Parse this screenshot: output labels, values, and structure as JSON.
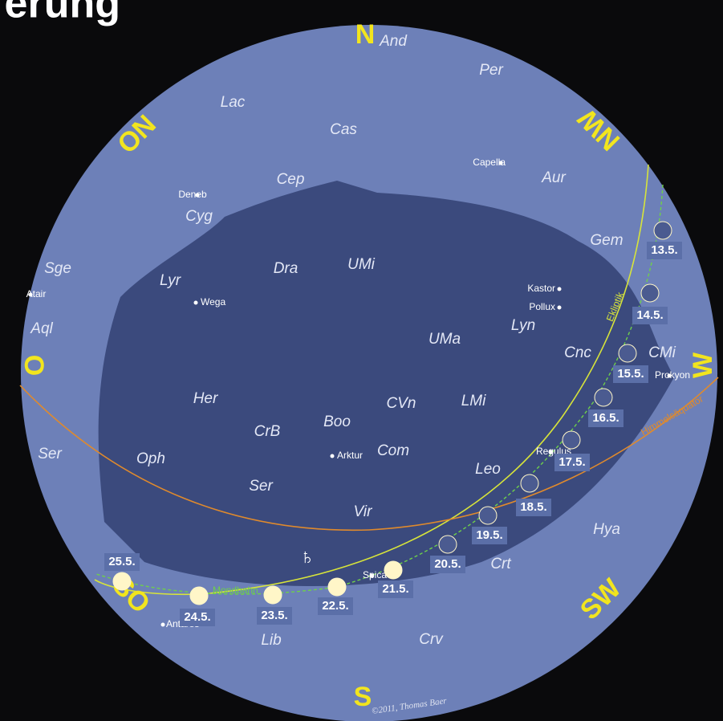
{
  "header": {
    "title": "erung"
  },
  "directions": {
    "n": "N",
    "no": "NO",
    "nw": "NW",
    "o": "O",
    "w": "W",
    "so": "SO",
    "sw": "SW",
    "s": "S"
  },
  "constellations": [
    "And",
    "Per",
    "Lac",
    "Cas",
    "Cep",
    "Aur",
    "Cyg",
    "Gem",
    "Sge",
    "Dra",
    "UMi",
    "Lyr",
    "Aql",
    "UMa",
    "Lyn",
    "Cnc",
    "CMi",
    "Her",
    "CVn",
    "LMi",
    "CrB",
    "Boo",
    "Com",
    "Leo",
    "Ser",
    "Oph",
    "Ser",
    "Vir",
    "Hya",
    "Crt",
    "Lib",
    "Crv"
  ],
  "stars": [
    "Capella",
    "Deneb",
    "Wega",
    "Atair",
    "Kastor",
    "Pollux",
    "Prokyon",
    "Arktur",
    "Regulus",
    "Spica",
    "Antares"
  ],
  "lines": {
    "ecliptic": "Ekliptik",
    "equator": "Himmelsäquator",
    "moon_path": "Mondbahn"
  },
  "planet": "♄",
  "moons": [
    "13.5.",
    "14.5.",
    "15.5.",
    "16.5.",
    "17.5.",
    "18.5.",
    "19.5.",
    "20.5.",
    "21.5.",
    "22.5.",
    "23.5.",
    "24.5.",
    "25.5."
  ],
  "credit": "©2011, Thomas Baer"
}
